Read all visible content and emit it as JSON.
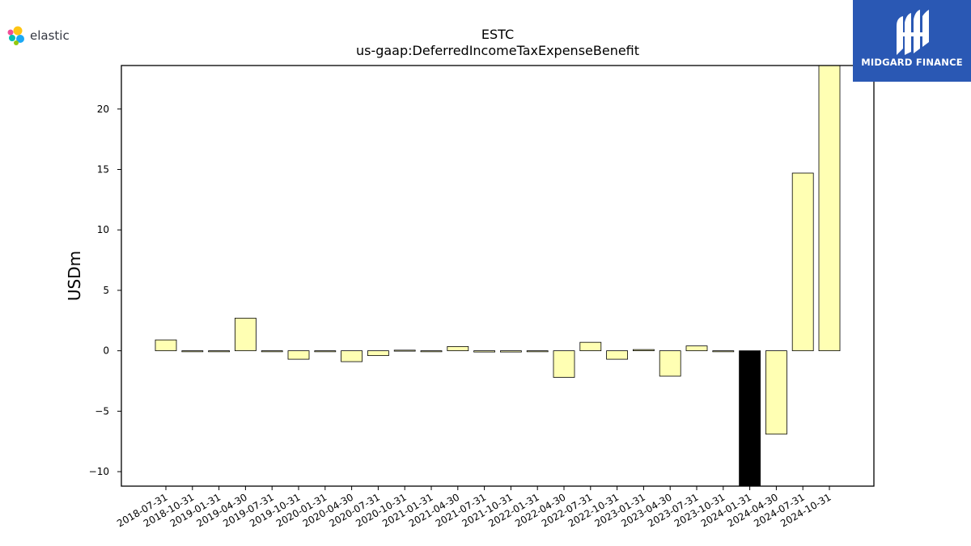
{
  "brand_left": {
    "name": "elastic",
    "icon": "elastic-logo-icon"
  },
  "brand_right": {
    "name": "MIDGARD FINANCE",
    "icon": "midgard-logo-icon",
    "bg_color": "#2a58b4"
  },
  "chart_data": {
    "type": "bar",
    "title": "ESTC",
    "subtitle": "us-gaap:DeferredIncomeTaxExpenseBenefit",
    "xlabel": "",
    "ylabel": "USDm",
    "ylim": [
      -11.2,
      23.6
    ],
    "yticks": [
      -10,
      -5,
      0,
      5,
      10,
      15,
      20
    ],
    "ytick_labels": [
      "−10",
      "−5",
      "0",
      "5",
      "10",
      "15",
      "20"
    ],
    "grid": false,
    "bar_color": "#ffffb3",
    "highlight_color": "#000000",
    "highlight_index": 22,
    "categories": [
      "2018-07-31",
      "2018-10-31",
      "2019-01-31",
      "2019-04-30",
      "2019-07-31",
      "2019-10-31",
      "2020-01-31",
      "2020-04-30",
      "2020-07-31",
      "2020-10-31",
      "2021-01-31",
      "2021-04-30",
      "2021-07-31",
      "2021-10-31",
      "2022-01-31",
      "2022-04-30",
      "2022-07-31",
      "2022-10-31",
      "2023-01-31",
      "2023-04-30",
      "2023-07-31",
      "2023-10-31",
      "2024-01-31",
      "2024-04-30",
      "2024-07-31",
      "2024-10-31"
    ],
    "values": [
      0.9,
      0.0,
      -0.05,
      2.7,
      0.0,
      -0.7,
      0.0,
      -0.9,
      -0.4,
      0.05,
      0.0,
      0.35,
      -0.1,
      -0.1,
      0.0,
      -2.2,
      0.7,
      -0.7,
      0.1,
      -2.1,
      0.4,
      0.0,
      -11.2,
      -6.9,
      14.7,
      23.6
    ]
  }
}
